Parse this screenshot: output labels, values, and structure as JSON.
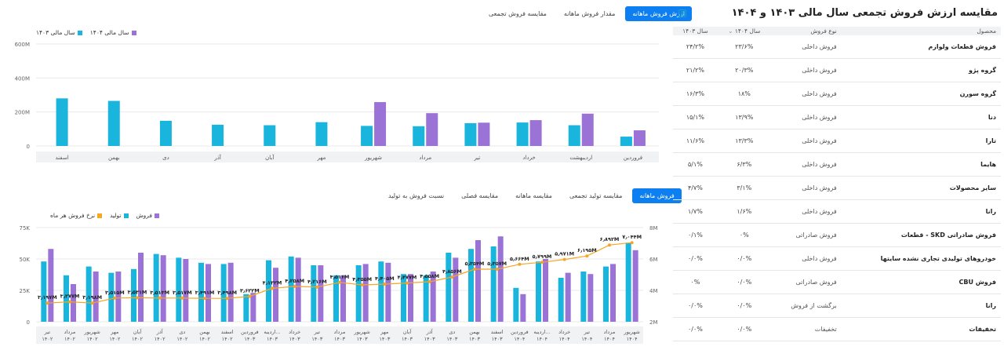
{
  "top_chart": {
    "tabs": [
      "ارزش فروش ماهانه",
      "مقدار فروش ماهانه",
      "مقایسه فروش تجمعی"
    ],
    "active_tab": 0,
    "legend": [
      {
        "label": "سال مالی ۱۴۰۳",
        "color": "#19b5dd"
      },
      {
        "label": "سال مالی ۱۴۰۴",
        "color": "#9b72d6"
      }
    ]
  },
  "bottom_chart": {
    "tabs": [
      "فروش ماهانه",
      "مقایسه تولید تجمعی",
      "مقایسه ماهانه",
      "مقایسه فصلی",
      "نسبت فروش به تولید"
    ],
    "active_tab": 0,
    "legend": [
      {
        "label": "فروش",
        "color": "#9b72d6"
      },
      {
        "label": "تولید",
        "color": "#19b5dd"
      },
      {
        "label": "نرخ فروش هر ماه",
        "color": "#f5a623"
      }
    ]
  },
  "chart_data": [
    {
      "type": "bar",
      "categories": [
        "فروردین",
        "اردیبهشت",
        "خرداد",
        "تیر",
        "مرداد",
        "شهریور",
        "مهر",
        "آبان",
        "آذر",
        "دی",
        "بهمن",
        "اسفند"
      ],
      "series": [
        {
          "name": "سال مالی ۱۴۰۳",
          "values": [
            55,
            122,
            138,
            134,
            116,
            118,
            140,
            122,
            125,
            148,
            265,
            280
          ]
        },
        {
          "name": "سال مالی ۱۴۰۴",
          "values": [
            92,
            190,
            152,
            137,
            193,
            258,
            null,
            null,
            null,
            null,
            null,
            null
          ]
        }
      ],
      "yticks": [
        "0",
        "200M",
        "400M",
        "600M"
      ],
      "ylim": [
        0,
        600
      ]
    },
    {
      "type": "bar",
      "categories": [
        [
          "تیر",
          "۱۴۰۲"
        ],
        [
          "مرداد",
          "۱۴۰۲"
        ],
        [
          "شهریور",
          "۱۴۰۲"
        ],
        [
          "مهر",
          "۱۴۰۲"
        ],
        [
          "آبان",
          "۱۴۰۲"
        ],
        [
          "آذر",
          "۱۴۰۲"
        ],
        [
          "دی",
          "۱۴۰۲"
        ],
        [
          "بهمن",
          "۱۴۰۲"
        ],
        [
          "اسفند",
          "۱۴۰۲"
        ],
        [
          "فروردین",
          "۱۴۰۳"
        ],
        [
          "اردیبه...",
          "۱۴۰۳"
        ],
        [
          "خرداد",
          "۱۴۰۳"
        ],
        [
          "تیر",
          "۱۴۰۳"
        ],
        [
          "مرداد",
          "۱۴۰۳"
        ],
        [
          "شهریور",
          "۱۴۰۳"
        ],
        [
          "مهر",
          "۱۴۰۳"
        ],
        [
          "آبان",
          "۱۴۰۳"
        ],
        [
          "آذر",
          "۱۴۰۳"
        ],
        [
          "دی",
          "۱۴۰۳"
        ],
        [
          "بهمن",
          "۱۴۰۳"
        ],
        [
          "اسفند",
          "۱۴۰۳"
        ],
        [
          "فروردین",
          "۱۴۰۴"
        ],
        [
          "اردیبه...",
          "۱۴۰۴"
        ],
        [
          "خرداد",
          "۱۴۰۴"
        ],
        [
          "تیر",
          "۱۴۰۴"
        ],
        [
          "مرداد",
          "۱۴۰۴"
        ],
        [
          "شهریور",
          "۱۴۰۴"
        ]
      ],
      "series": [
        {
          "name": "تولید",
          "values": [
            48,
            37,
            44,
            39,
            42,
            54,
            51,
            47,
            46,
            22,
            49,
            52,
            45,
            37,
            45,
            48,
            38,
            37,
            55,
            58,
            60,
            27,
            48,
            35,
            40,
            44,
            63
          ]
        },
        {
          "name": "فروش",
          "values": [
            58,
            30,
            40,
            40,
            55,
            53,
            50,
            46,
            47,
            23,
            43,
            51,
            45,
            37,
            46,
            47,
            38,
            40,
            51,
            65,
            68,
            22,
            50,
            39,
            38,
            46,
            57
          ]
        },
        {
          "name": "نرخ فروش هر ماه",
          "values": [
            3.19,
            3.27,
            3.19,
            3.51,
            3.53,
            3.51,
            3.51,
            3.49,
            3.49,
            3.62,
            4.13,
            4.25,
            4.21,
            4.51,
            4.35,
            4.4,
            4.47,
            4.55,
            4.85,
            5.35,
            5.35,
            5.66,
            5.79,
            5.97,
            6.19,
            6.89,
            7.04
          ],
          "labels": [
            "۳٫۱۹۷M",
            "۳٫۲۷۷M",
            "۳٫۱۹۸M",
            "۳٫۵۱۵M",
            "۳٫۵۳۱M",
            "۳٫۵۱۳M",
            "۳٫۵۱۷M",
            "۳٫۴۹۱M",
            "۳٫۴۹۸M",
            "۳٫۶۲۲M",
            "۴٫۱۳۲M",
            "۴٫۲۵۸M",
            "۴٫۲۱۶M",
            "۴٫۵۱۶M",
            "۴٫۳۵۵M",
            "۴٫۴۰۵M",
            "۴٫۴۷۷M",
            "۴٫۵۵۸M",
            "۴٫۸۵۶M",
            "۵٫۳۵۴M",
            "۵٫۳۵۷M",
            "۵٫۶۶۴M",
            "۵٫۷۹۹M",
            "۵٫۹۷۱M",
            "۶٫۱۹۵M",
            "۶٫۸۹۲M",
            "۷٫۰۴۴M"
          ]
        }
      ],
      "yticks_left": [
        "0",
        "25K",
        "50K",
        "75K"
      ],
      "yticks_right": [
        "2M",
        "4M",
        "6M",
        "8M"
      ],
      "ylim_left": [
        0,
        75
      ],
      "ylim_right": [
        2,
        8
      ]
    }
  ],
  "table": {
    "title": "مقایسه ارزش فروش تجمعی سال مالی ۱۴۰۳ و ۱۴۰۴",
    "headers": [
      "محصول",
      "نوع فروش",
      "سال ۱۴۰۴",
      "سال ۱۴۰۳"
    ],
    "rows": [
      [
        "فروش قطعات ولوازم",
        "فروش داخلی",
        "۲۳/۶%",
        "۲۴/۲%"
      ],
      [
        "گروه پژو",
        "فروش داخلی",
        "۲۰/۳%",
        "۲۱/۲%"
      ],
      [
        "گروه سورن",
        "فروش داخلی",
        "۱۸%",
        "۱۶/۳%"
      ],
      [
        "دنا",
        "فروش داخلی",
        "۱۳/۹%",
        "۱۵/۱%"
      ],
      [
        "تارا",
        "فروش داخلی",
        "۱۳/۳%",
        "۱۱/۶%"
      ],
      [
        "هایما",
        "فروش داخلی",
        "۶/۳%",
        "۵/۱%"
      ],
      [
        "سایر محصولات",
        "فروش داخلی",
        "۳/۱%",
        "۴/۷%"
      ],
      [
        "رانا",
        "فروش داخلی",
        "۱/۶%",
        "۱/۷%"
      ],
      [
        "فروش صادراتی SKD - قطعات",
        "فروش صادراتی",
        "۰%",
        "۰/۱%"
      ],
      [
        "خودروهای تولیدی تجاری نشده سایتها",
        "فروش داخلی",
        "۰/۰%",
        "۰/۰%"
      ],
      [
        "فروش CBU",
        "فروش صادراتی",
        "۰/۰%",
        "۰%"
      ],
      [
        "رانا",
        "برگشت از فروش",
        "۰/۰%",
        "۰/۰%"
      ],
      [
        "تخفیفات",
        "تخفیفات",
        "۰/۰%",
        "۰/۰%"
      ]
    ]
  }
}
